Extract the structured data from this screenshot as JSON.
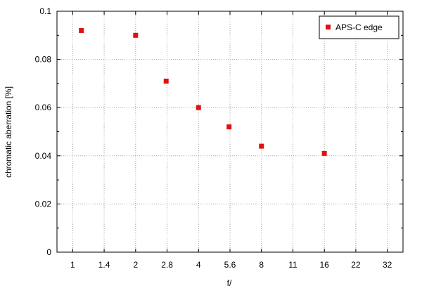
{
  "chart_data": {
    "type": "scatter",
    "xlabel": "f/",
    "ylabel": "chromatic aberration [%]",
    "x_ticks": [
      "1",
      "1.4",
      "2",
      "2.8",
      "4",
      "5.6",
      "8",
      "11",
      "16",
      "22",
      "32"
    ],
    "y_ticks": [
      "0",
      "0.02",
      "0.04",
      "0.06",
      "0.08",
      "0.1"
    ],
    "ylim": [
      0,
      0.1
    ],
    "x_scale": "log2 (f-stops)",
    "grid": true,
    "legend_position": "top-right",
    "series": [
      {
        "name": "APS-C edge",
        "color": "#e31010",
        "marker": "square",
        "x": [
          1.1,
          2,
          2.8,
          4,
          5.6,
          8,
          16
        ],
        "y": [
          0.092,
          0.09,
          0.071,
          0.06,
          0.052,
          0.044,
          0.041
        ]
      }
    ]
  }
}
